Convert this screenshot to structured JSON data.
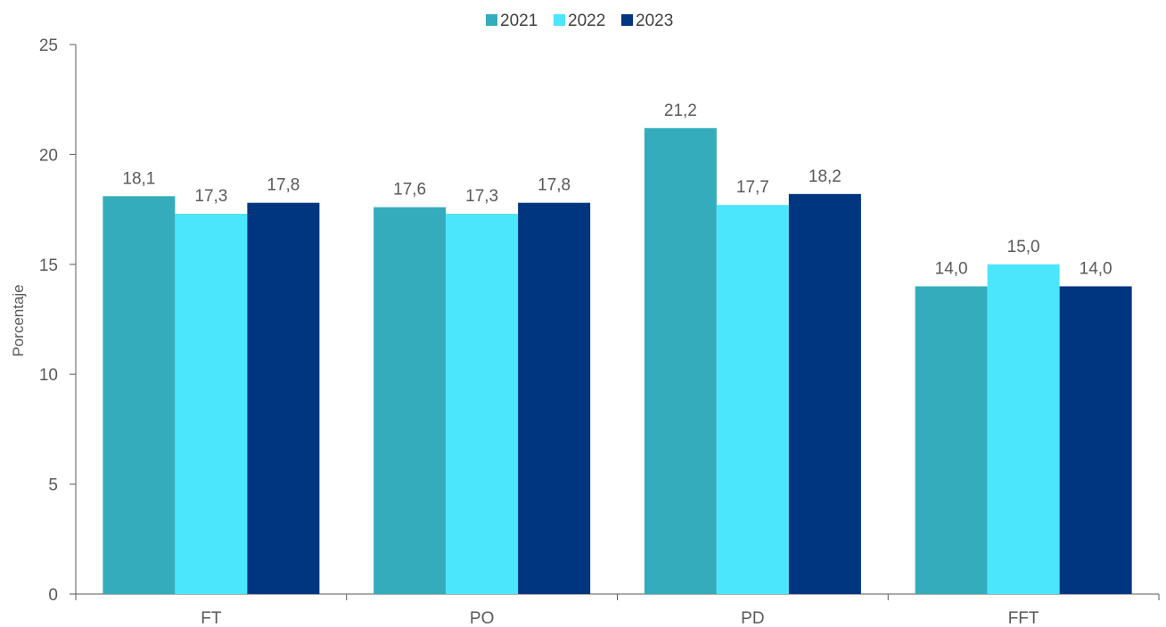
{
  "chart_data": {
    "type": "bar",
    "categories": [
      "FT",
      "PO",
      "PD",
      "FFT"
    ],
    "series": [
      {
        "name": "2021",
        "color": "#35ACBC",
        "values": [
          18.1,
          17.6,
          21.2,
          14.0
        ],
        "labels": [
          "18,1",
          "17,6",
          "21,2",
          "14,0"
        ]
      },
      {
        "name": "2022",
        "color": "#4BE6FC",
        "values": [
          17.3,
          17.3,
          17.7,
          15.0
        ],
        "labels": [
          "17,3",
          "17,3",
          "17,7",
          "15,0"
        ]
      },
      {
        "name": "2023",
        "color": "#003580",
        "values": [
          17.8,
          17.8,
          18.2,
          14.0
        ],
        "labels": [
          "17,8",
          "17,8",
          "18,2",
          "14,0"
        ]
      }
    ],
    "ylabel": "Porcentaje",
    "xlabel": "",
    "ylim": [
      0,
      25
    ],
    "yticks": [
      0,
      5,
      10,
      15,
      20,
      25
    ],
    "grid": false,
    "legend_position": "top-center"
  }
}
